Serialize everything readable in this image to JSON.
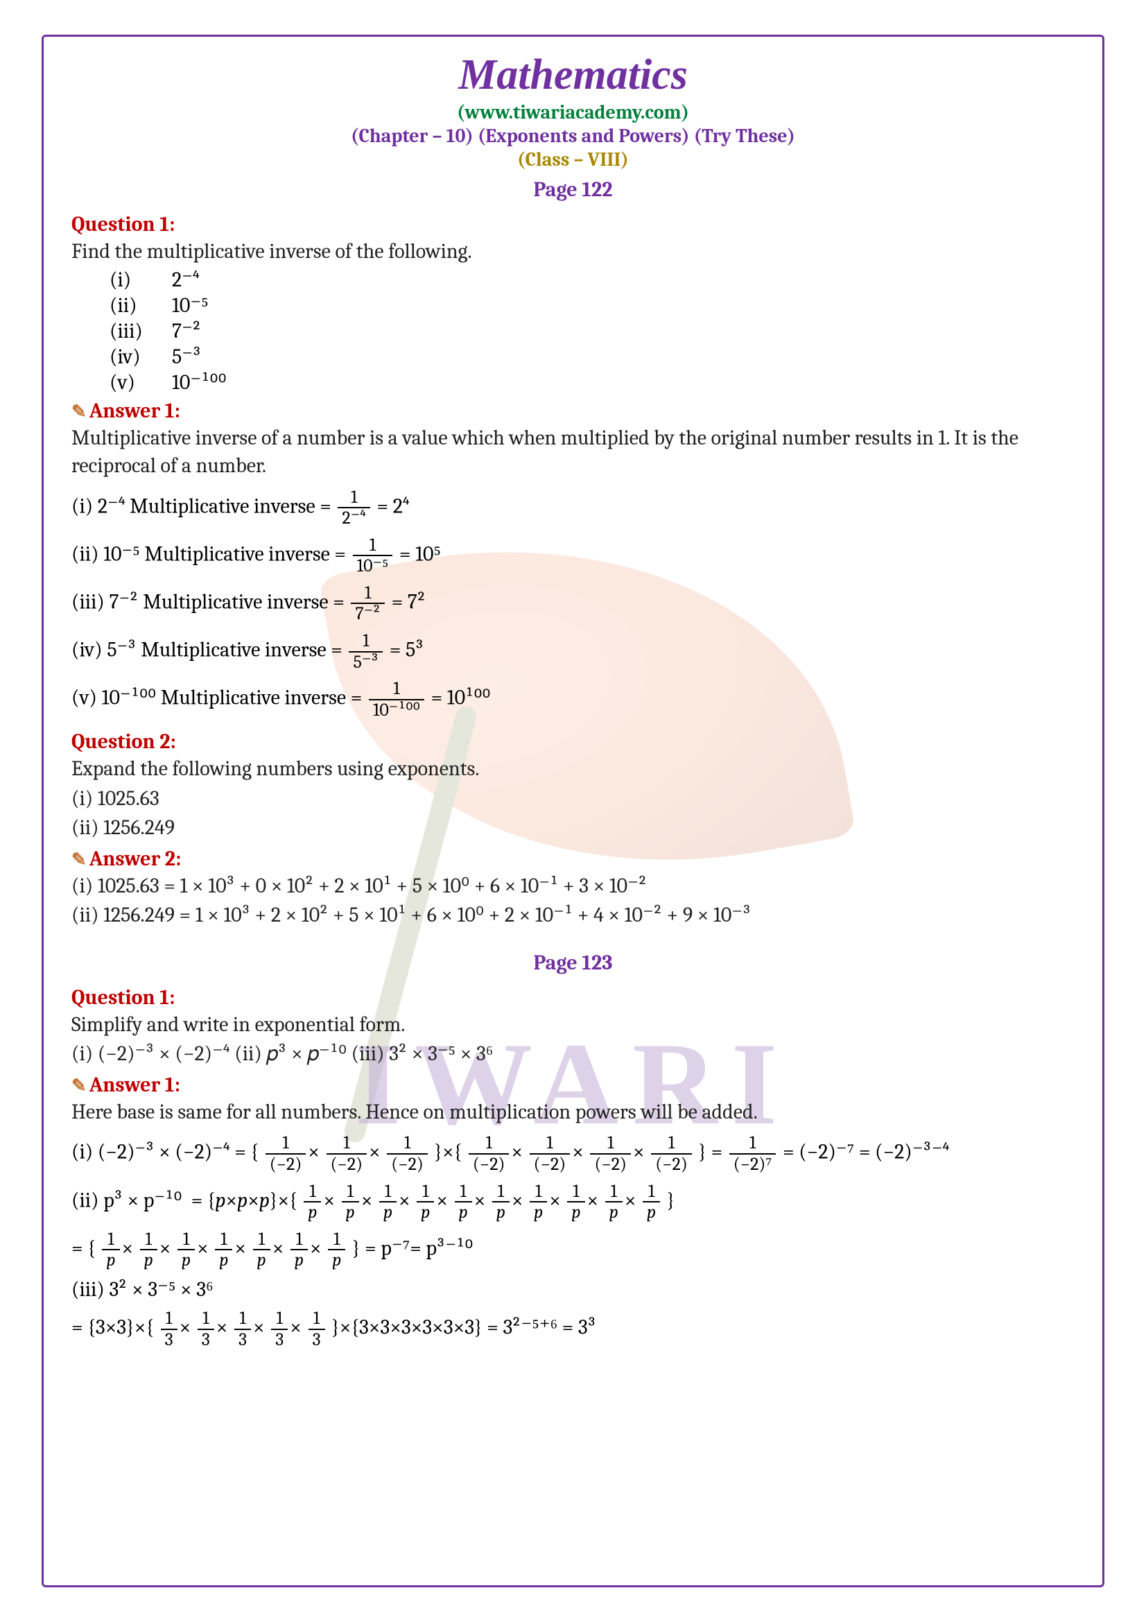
{
  "header": {
    "title": "Mathematics",
    "url": "(www.tiwariacademy.com)",
    "chapter": "(Chapter – 10) (Exponents and Powers) (Try These)",
    "class_label": "(Class – VIII)",
    "page_label_1": "Page 122",
    "page_label_2": "Page 123"
  },
  "colors": {
    "frame_border": "#7030a0",
    "title": "#7030a0",
    "url": "#00803a",
    "chapter": "#7030a0",
    "class": "#a88600",
    "question": "#c00000",
    "watermark_text": "#c3aed6",
    "body": "#222222"
  },
  "watermark_text": "IWARI",
  "q1": {
    "head": "Question 1:",
    "prompt": "Find the multiplicative inverse of the following.",
    "items": [
      {
        "num": "(i)",
        "expr": "2⁻⁴"
      },
      {
        "num": "(ii)",
        "expr": "10⁻⁵"
      },
      {
        "num": "(iii)",
        "expr": "7⁻²"
      },
      {
        "num": "(iv)",
        "expr": "5⁻³"
      },
      {
        "num": "(v)",
        "expr": "10⁻¹⁰⁰"
      }
    ]
  },
  "a1": {
    "head": "Answer 1:",
    "intro": "Multiplicative inverse of a number is a value which when multiplied by the original number results in 1. It is the reciprocal of a number.",
    "rows": [
      {
        "label": "(i) 2⁻⁴ Multiplicative inverse = ",
        "top": "1",
        "bot": "2⁻⁴",
        "result": " = 2⁴"
      },
      {
        "label": "(ii) 10⁻⁵ Multiplicative inverse = ",
        "top": "1",
        "bot": "10⁻⁵",
        "result": " = 10⁵"
      },
      {
        "label": "(iii) 7⁻² Multiplicative inverse = ",
        "top": "1",
        "bot": "7⁻²",
        "result": " = 7²"
      },
      {
        "label": "(iv) 5⁻³ Multiplicative inverse = ",
        "top": "1",
        "bot": "5⁻³",
        "result": " = 5³"
      },
      {
        "label": "(v) 10⁻¹⁰⁰ Multiplicative inverse = ",
        "top": "1",
        "bot": "10⁻¹⁰⁰",
        "result": " = 10¹⁰⁰"
      }
    ]
  },
  "q2": {
    "head": "Question 2:",
    "prompt": "Expand the following numbers using exponents.",
    "items": [
      "(i) 1025.63",
      "(ii) 1256.249"
    ]
  },
  "a2": {
    "head": "Answer 2:",
    "rows": [
      "(i) 1025.63 = 1 × 10³ + 0 × 10² + 2 × 10¹ + 5 × 10⁰ + 6 × 10⁻¹ + 3 × 10⁻²",
      "(ii) 1256.249  = 1 × 10³ + 2 × 10² + 5 × 10¹ + 6 × 10⁰ + 2 × 10⁻¹ + 4 × 10⁻² + 9 × 10⁻³"
    ]
  },
  "q3": {
    "head": "Question 1:",
    "prompt": "Simplify and write in exponential form.",
    "sub": "(i) (−2)⁻³ × (−2)⁻⁴ (ii) 𝑝³ × 𝑝⁻¹⁰ (iii) 3² × 3⁻⁵ × 3⁶"
  },
  "a3": {
    "head": "Answer 1:",
    "intro": "Here base is same for all numbers. Hence on multiplication powers will be added."
  }
}
